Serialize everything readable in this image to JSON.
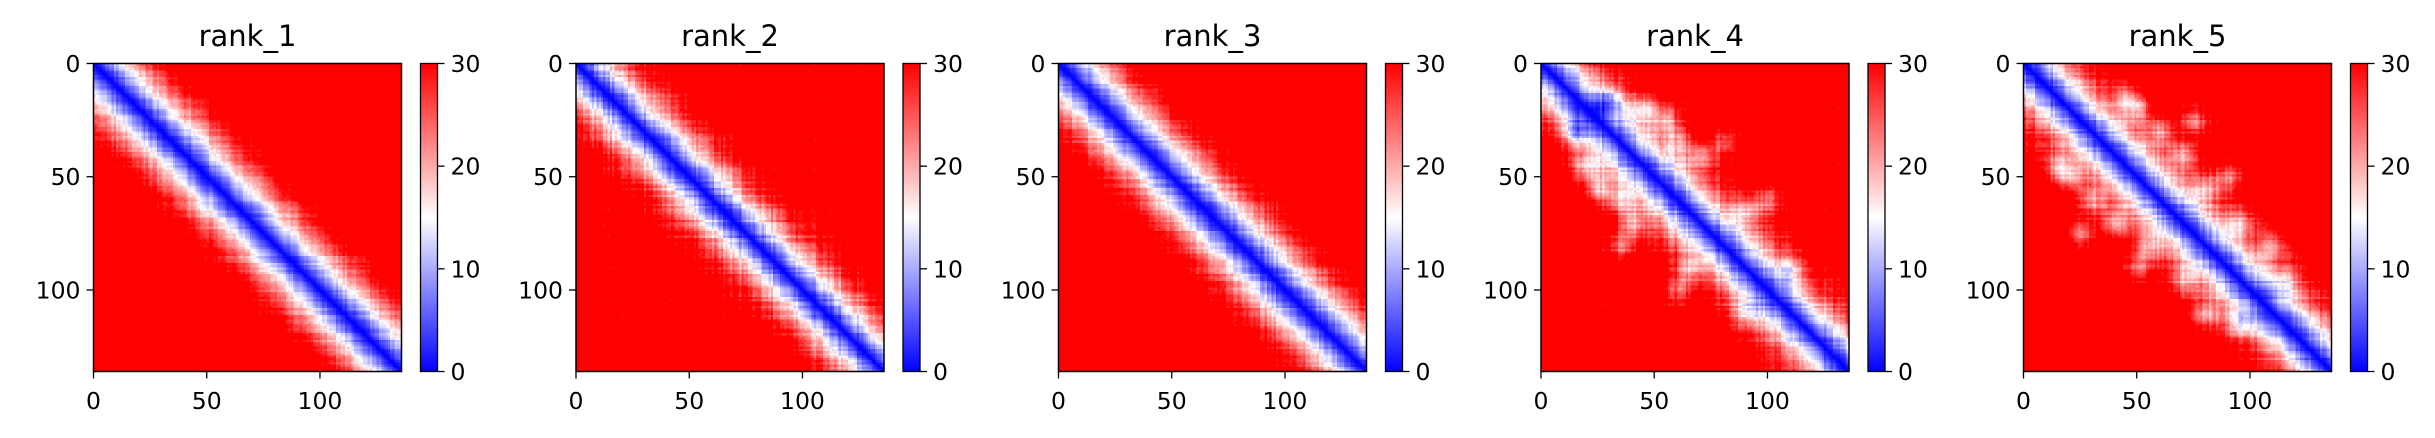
{
  "chart_data": [
    {
      "type": "heatmap",
      "title": "rank_1",
      "matrix_size": 136,
      "xticks": [
        0,
        50,
        100
      ],
      "yticks": [
        0,
        50,
        100
      ],
      "colorbar": {
        "min": 0,
        "max": 30,
        "ticks": [
          0,
          10,
          20,
          30
        ],
        "colormap": "bwr"
      },
      "pattern": {
        "diagonal_width": 2.2,
        "near_diagonal_width": 9,
        "off_diagonal_distance": 29,
        "texture": 1.6,
        "fold_blobs": []
      }
    },
    {
      "type": "heatmap",
      "title": "rank_2",
      "matrix_size": 136,
      "xticks": [
        0,
        50,
        100
      ],
      "yticks": [
        0,
        50,
        100
      ],
      "colorbar": {
        "min": 0,
        "max": 30,
        "ticks": [
          0,
          10,
          20,
          30
        ],
        "colormap": "bwr"
      },
      "pattern": {
        "diagonal_width": 2.2,
        "near_diagonal_width": 8,
        "off_diagonal_distance": 26,
        "texture": 2.2,
        "fold_blobs": []
      }
    },
    {
      "type": "heatmap",
      "title": "rank_3",
      "matrix_size": 136,
      "xticks": [
        0,
        50,
        100
      ],
      "yticks": [
        0,
        50,
        100
      ],
      "colorbar": {
        "min": 0,
        "max": 30,
        "ticks": [
          0,
          10,
          20,
          30
        ],
        "colormap": "bwr"
      },
      "pattern": {
        "diagonal_width": 2.2,
        "near_diagonal_width": 10,
        "off_diagonal_distance": 28,
        "texture": 1.8,
        "fold_blobs": []
      }
    },
    {
      "type": "heatmap",
      "title": "rank_4",
      "matrix_size": 136,
      "xticks": [
        0,
        50,
        100
      ],
      "yticks": [
        0,
        50,
        100
      ],
      "colorbar": {
        "min": 0,
        "max": 30,
        "ticks": [
          0,
          10,
          20,
          30
        ],
        "colormap": "bwr"
      },
      "pattern": {
        "diagonal_width": 2.2,
        "near_diagonal_width": 9,
        "off_diagonal_distance": 24,
        "texture": 2.0,
        "fold_blobs": [
          [
            45,
            20,
            20
          ],
          [
            70,
            40,
            19
          ],
          [
            90,
            65,
            18
          ],
          [
            30,
            15,
            20
          ],
          [
            60,
            35,
            17
          ],
          [
            110,
            90,
            17
          ],
          [
            55,
            25,
            20
          ],
          [
            80,
            35,
            19
          ],
          [
            100,
            60,
            17
          ]
        ]
      }
    },
    {
      "type": "heatmap",
      "title": "rank_5",
      "matrix_size": 136,
      "xticks": [
        0,
        50,
        100
      ],
      "yticks": [
        0,
        50,
        100
      ],
      "colorbar": {
        "min": 0,
        "max": 30,
        "ticks": [
          0,
          10,
          20,
          30
        ],
        "colormap": "bwr"
      },
      "pattern": {
        "diagonal_width": 2.2,
        "near_diagonal_width": 9,
        "off_diagonal_distance": 24,
        "texture": 2.0,
        "fold_blobs": [
          [
            50,
            20,
            18
          ],
          [
            70,
            40,
            18
          ],
          [
            95,
            70,
            17
          ],
          [
            60,
            30,
            19
          ],
          [
            80,
            55,
            18
          ],
          [
            110,
            80,
            18
          ],
          [
            45,
            15,
            19
          ],
          [
            90,
            50,
            19
          ],
          [
            115,
            95,
            17
          ],
          [
            75,
            25,
            20
          ]
        ]
      }
    }
  ]
}
